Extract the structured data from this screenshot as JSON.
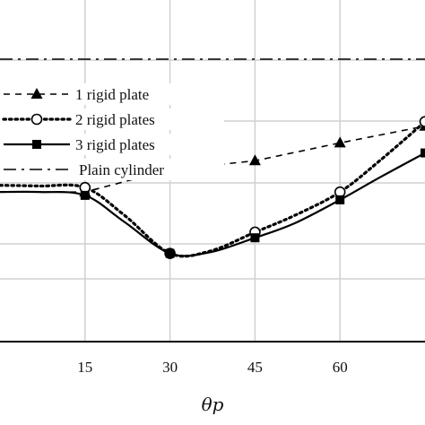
{
  "chart_data": {
    "type": "line",
    "title": "",
    "xlabel": "θp",
    "ylabel": "",
    "x_ticks": [
      15,
      30,
      45,
      60
    ],
    "xlim": [
      0,
      75
    ],
    "ylim": [
      0,
      1
    ],
    "grid": true,
    "legend_position": "top-left",
    "series": [
      {
        "name": "1 rigid plate",
        "line_style": "dashed",
        "marker": "triangle",
        "color": "#000000",
        "x": [
          0,
          15,
          30,
          45,
          60,
          75
        ],
        "y": [
          0.405,
          0.405,
          0.505,
          0.545,
          0.625,
          0.7
        ]
      },
      {
        "name": "2 rigid plates",
        "line_style": "dotted",
        "marker": "open-circle",
        "color": "#000000",
        "x": [
          0,
          7,
          15,
          22,
          30,
          37,
          45,
          52,
          60,
          67,
          75
        ],
        "y": [
          0.435,
          0.432,
          0.425,
          0.3,
          0.13,
          0.14,
          0.225,
          0.3,
          0.405,
          0.545,
          0.72
        ]
      },
      {
        "name": "3 rigid plates",
        "line_style": "solid",
        "marker": "filled-square",
        "color": "#000000",
        "x": [
          0,
          7,
          15,
          22,
          30,
          37,
          45,
          52,
          60,
          67,
          75
        ],
        "y": [
          0.405,
          0.405,
          0.39,
          0.27,
          0.13,
          0.135,
          0.2,
          0.265,
          0.37,
          0.47,
          0.58
        ]
      },
      {
        "name": "Plain cylinder",
        "line_style": "dash-dot",
        "marker": "none",
        "color": "#000000",
        "x": [
          0,
          75
        ],
        "y": [
          1.0,
          1.0
        ]
      }
    ]
  }
}
